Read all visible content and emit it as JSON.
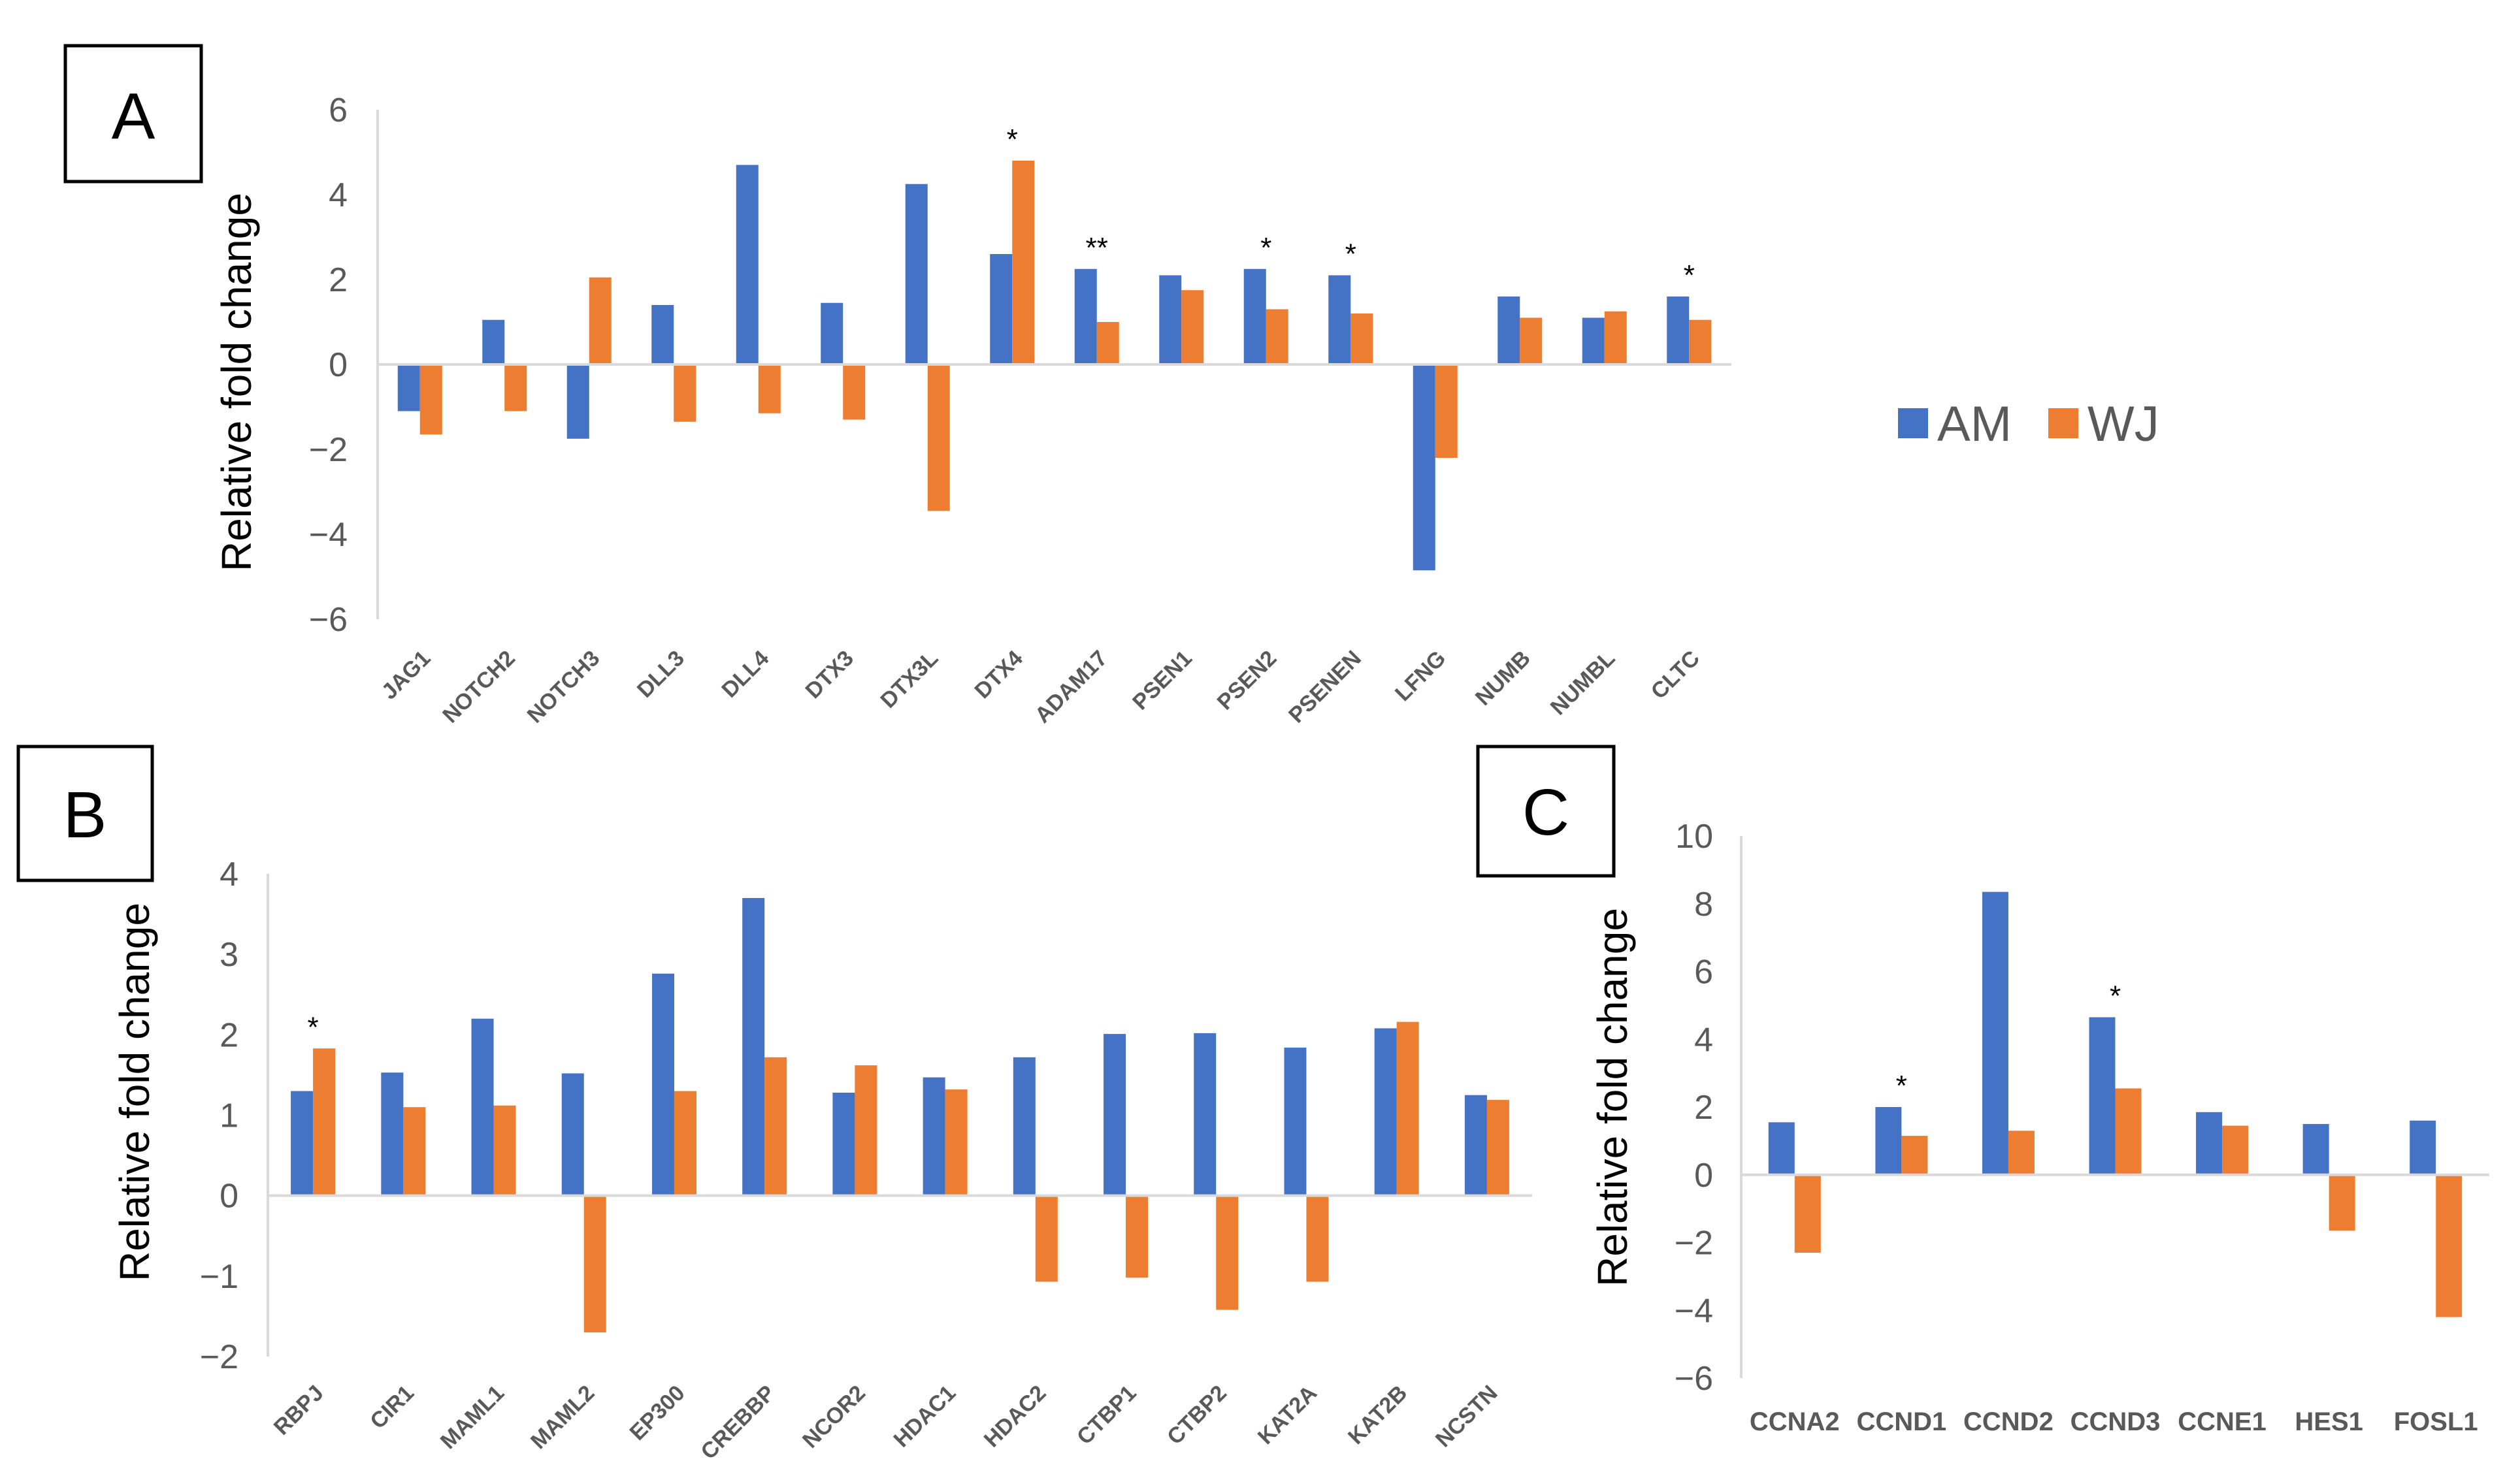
{
  "colors": {
    "am": "#4472C4",
    "wj": "#ED7D31",
    "axis": "#D9D9D9",
    "text": "#595959"
  },
  "legend": [
    {
      "key": "AM",
      "label": "AM",
      "color": "#4472C4"
    },
    {
      "key": "WJ",
      "label": "WJ",
      "color": "#ED7D31"
    }
  ],
  "chart_data": [
    {
      "id": "A",
      "panel_label": "A",
      "type": "bar",
      "ylabel": "Relative fold change",
      "ylim": [
        -6,
        6
      ],
      "yticks": [
        -6,
        -4,
        -2,
        0,
        2,
        4,
        6
      ],
      "ytick_labels": [
        "−6",
        "−4",
        "−2",
        "0",
        "2",
        "4",
        "6"
      ],
      "categories": [
        "JAG1",
        "NOTCH2",
        "NOTCH3",
        "DLL3",
        "DLL4",
        "DTX3",
        "DTX3L",
        "DTX4",
        "ADAM17",
        "PSEN1",
        "PSEN2",
        "PSENEN",
        "LFNG",
        "NUMB",
        "NUMBL",
        "CLTC"
      ],
      "series": [
        {
          "name": "AM",
          "values": [
            -1.1,
            1.05,
            -1.75,
            1.4,
            4.7,
            1.45,
            4.25,
            2.6,
            2.25,
            2.1,
            2.25,
            2.1,
            -4.85,
            1.6,
            1.1,
            1.6
          ]
        },
        {
          "name": "WJ",
          "values": [
            -1.65,
            -1.1,
            2.05,
            -1.35,
            -1.15,
            -1.3,
            -3.45,
            4.8,
            1.0,
            1.75,
            1.3,
            1.2,
            -2.2,
            1.1,
            1.25,
            1.05
          ]
        }
      ],
      "annotations": [
        {
          "category": "DTX4",
          "text": "*"
        },
        {
          "category": "ADAM17",
          "text": "**"
        },
        {
          "category": "PSEN2",
          "text": "*"
        },
        {
          "category": "PSENEN",
          "text": "*"
        },
        {
          "category": "CLTC",
          "text": "*"
        }
      ]
    },
    {
      "id": "B",
      "panel_label": "B",
      "type": "bar",
      "ylabel": "Relative fold change",
      "ylim": [
        -2,
        4
      ],
      "yticks": [
        -2,
        -1,
        0,
        1,
        2,
        3,
        4
      ],
      "ytick_labels": [
        "−2",
        "−1",
        "0",
        "1",
        "2",
        "3",
        "4"
      ],
      "categories": [
        "RBPJ",
        "CIR1",
        "MAML1",
        "MAML2",
        "EP300",
        "CREBBP",
        "NCOR2",
        "HDAC1",
        "HDAC2",
        "CTBP1",
        "CTBP2",
        "KAT2A",
        "KAT2B",
        "NCSTN"
      ],
      "series": [
        {
          "name": "AM",
          "values": [
            1.3,
            1.53,
            2.2,
            1.52,
            2.76,
            3.7,
            1.28,
            1.47,
            1.72,
            2.01,
            2.02,
            1.84,
            2.08,
            1.25
          ]
        },
        {
          "name": "WJ",
          "values": [
            1.83,
            1.1,
            1.12,
            -1.7,
            1.3,
            1.72,
            1.62,
            1.32,
            -1.07,
            -1.02,
            -1.42,
            -1.07,
            2.16,
            1.19
          ]
        }
      ],
      "annotations": [
        {
          "category": "RBPJ",
          "text": "*"
        }
      ]
    },
    {
      "id": "C",
      "panel_label": "C",
      "type": "bar",
      "ylabel": "Relative fold change",
      "ylim": [
        -6,
        10
      ],
      "yticks": [
        -6,
        -4,
        -2,
        0,
        2,
        4,
        6,
        8,
        10
      ],
      "ytick_labels": [
        "−6",
        "−4",
        "−2",
        "0",
        "2",
        "4",
        "6",
        "8",
        "10"
      ],
      "categories": [
        "CCNA2",
        "CCND1",
        "CCND2",
        "CCND3",
        "CCNE1",
        "HES1",
        "FOSL1"
      ],
      "series": [
        {
          "name": "AM",
          "values": [
            1.55,
            2.0,
            8.35,
            4.65,
            1.85,
            1.5,
            1.6
          ]
        },
        {
          "name": "WJ",
          "values": [
            -2.3,
            1.15,
            1.3,
            2.55,
            1.45,
            -1.65,
            -4.2
          ]
        }
      ],
      "annotations": [
        {
          "category": "CCND1",
          "text": "*"
        },
        {
          "category": "CCND3",
          "text": "*"
        }
      ]
    }
  ]
}
